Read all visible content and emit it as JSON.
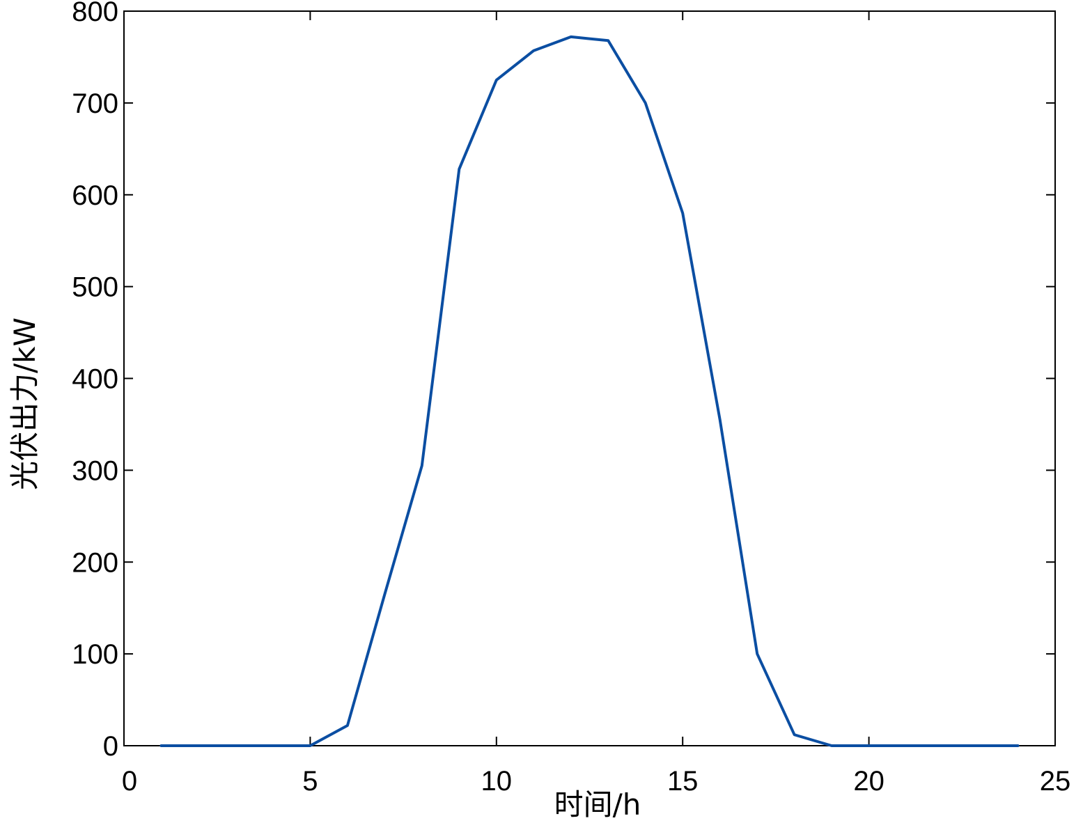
{
  "chart_data": {
    "type": "line",
    "title": "",
    "xlabel": "时间/h",
    "ylabel": "光伏出力/kW",
    "xlim": [
      0,
      25
    ],
    "ylim": [
      0,
      800
    ],
    "xticks": [
      0,
      5,
      10,
      15,
      20,
      25
    ],
    "yticks": [
      0,
      100,
      200,
      300,
      400,
      500,
      600,
      700,
      800
    ],
    "grid": false,
    "legend": "none",
    "line_color": "#0b4ea2",
    "series": [
      {
        "x": [
          1,
          2,
          3,
          4,
          5,
          6,
          7,
          8,
          9,
          10,
          11,
          12,
          12.5,
          13,
          14,
          15,
          16,
          17,
          18,
          19,
          20,
          21,
          22,
          23,
          24
        ],
        "values": [
          0,
          0,
          0,
          0,
          0,
          22,
          165,
          305,
          628,
          725,
          757,
          772,
          770,
          768,
          700,
          580,
          355,
          100,
          12,
          0,
          0,
          0,
          0,
          0,
          0
        ]
      }
    ]
  }
}
